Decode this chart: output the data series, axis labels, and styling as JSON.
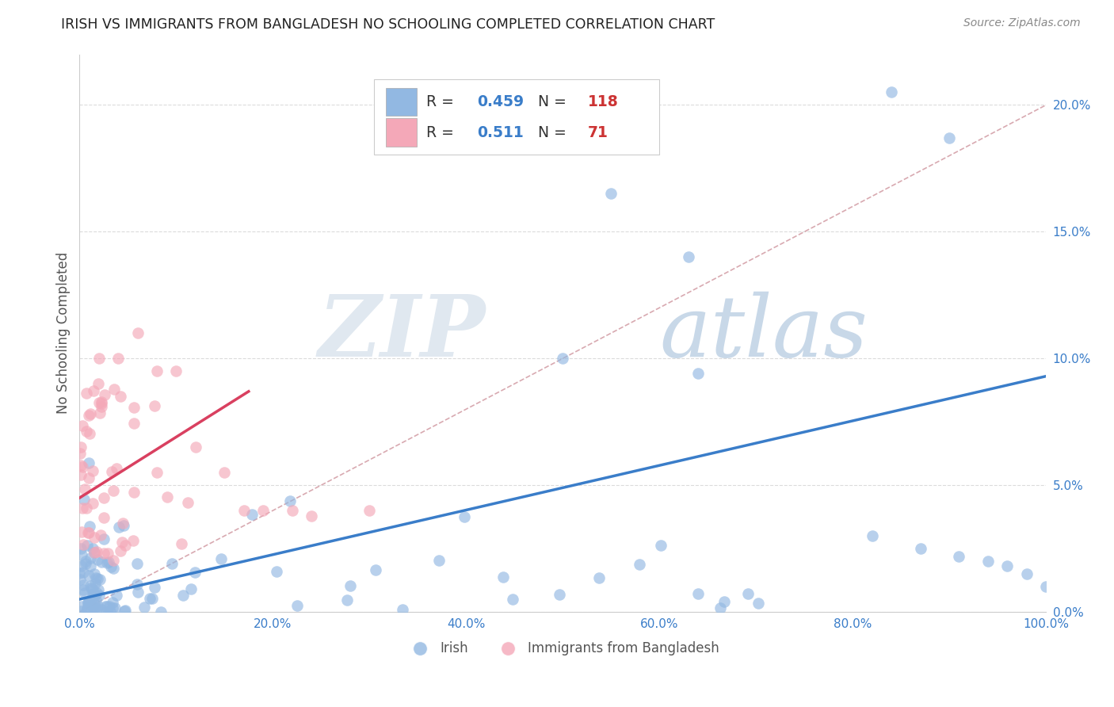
{
  "title": "IRISH VS IMMIGRANTS FROM BANGLADESH NO SCHOOLING COMPLETED CORRELATION CHART",
  "source": "Source: ZipAtlas.com",
  "ylabel": "No Schooling Completed",
  "xlabel": "",
  "blue_color": "#92b8e2",
  "pink_color": "#f4a8b8",
  "blue_line_color": "#3a7dc9",
  "pink_line_color": "#d94060",
  "ref_line_color": "#d4a0a8",
  "xlim": [
    0.0,
    1.0
  ],
  "ylim": [
    0.0,
    0.22
  ],
  "x_ticks": [
    0.0,
    0.2,
    0.4,
    0.6,
    0.8,
    1.0
  ],
  "y_ticks": [
    0.0,
    0.05,
    0.1,
    0.15,
    0.2
  ],
  "blue_trend_x": [
    0.0,
    1.0
  ],
  "blue_trend_y": [
    0.005,
    0.093
  ],
  "pink_trend_x": [
    0.0,
    0.175
  ],
  "pink_trend_y": [
    0.045,
    0.087
  ],
  "ref_line_x": [
    0.0,
    1.1
  ],
  "ref_line_y": [
    0.0,
    0.22
  ],
  "legend_blue_label": "Irish",
  "legend_pink_label": "Immigrants from Bangladesh",
  "bg_color": "#ffffff",
  "grid_color": "#cccccc",
  "title_color": "#222222",
  "axis_label_color": "#555555",
  "source_color": "#888888",
  "r_value_color": "#3a7dc9",
  "n_value_color": "#cc3333",
  "blue_R": "0.459",
  "blue_N": "118",
  "pink_R": "0.511",
  "pink_N": "71"
}
